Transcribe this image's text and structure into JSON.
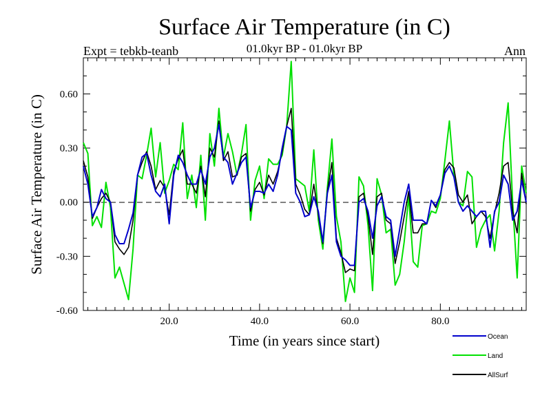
{
  "chart_data": {
    "type": "line",
    "title": "Surface Air Temperature (in C)",
    "subtitle": "01.0kyr BP - 01.0kyr BP",
    "experiment": "Expt = tebkb-teanb",
    "season": "Ann",
    "xlabel": "Time (in years since start)",
    "ylabel": "Surface Air Temperature (in C)",
    "xlim": [
      1,
      99
    ],
    "ylim": [
      -0.6,
      0.8
    ],
    "xticks": [
      20,
      40,
      60,
      80
    ],
    "xtick_labels": [
      "20.0",
      "40.0",
      "60.0",
      "80.0"
    ],
    "yticks": [
      -0.6,
      -0.3,
      0.0,
      0.3,
      0.6
    ],
    "ytick_labels": [
      "-0.60",
      "-0.30",
      "0.00",
      "0.30",
      "0.60"
    ],
    "zero_line": "dashed",
    "x_start": 1,
    "x_step": 1,
    "series": [
      {
        "name": "Ocean",
        "color": "#0000cc",
        "values": [
          0.2,
          0.1,
          -0.08,
          -0.03,
          0.07,
          0.02,
          0.0,
          -0.18,
          -0.23,
          -0.23,
          -0.15,
          -0.06,
          0.15,
          0.25,
          0.27,
          0.15,
          0.06,
          0.03,
          0.1,
          -0.12,
          0.15,
          0.26,
          0.22,
          0.15,
          0.1,
          0.1,
          0.18,
          0.1,
          0.25,
          0.3,
          0.43,
          0.25,
          0.22,
          0.1,
          0.16,
          0.22,
          0.25,
          -0.03,
          0.06,
          0.06,
          0.05,
          0.1,
          0.06,
          0.15,
          0.3,
          0.42,
          0.4,
          0.05,
          0.0,
          -0.08,
          -0.07,
          0.03,
          -0.05,
          -0.22,
          0.05,
          0.15,
          -0.22,
          -0.3,
          -0.32,
          -0.35,
          -0.35,
          0.0,
          0.02,
          -0.05,
          -0.2,
          -0.02,
          0.03,
          -0.08,
          -0.1,
          -0.3,
          -0.15,
          0.0,
          0.1,
          -0.1,
          -0.1,
          -0.1,
          -0.12,
          0.01,
          -0.02,
          0.04,
          0.16,
          0.2,
          0.14,
          0.0,
          -0.05,
          -0.02,
          -0.05,
          -0.08,
          -0.05,
          -0.05,
          -0.25,
          -0.05,
          0.0,
          0.15,
          0.1,
          -0.1,
          -0.05,
          0.12,
          -0.0
        ]
      },
      {
        "name": "Land",
        "color": "#00e000",
        "values": [
          0.33,
          0.27,
          -0.13,
          -0.08,
          -0.14,
          0.11,
          -0.03,
          -0.42,
          -0.36,
          -0.45,
          -0.54,
          -0.26,
          0.15,
          0.13,
          0.26,
          0.41,
          0.14,
          0.33,
          0.05,
          0.12,
          0.21,
          0.18,
          0.44,
          0.02,
          0.15,
          -0.03,
          0.26,
          -0.1,
          0.38,
          0.2,
          0.52,
          0.25,
          0.38,
          0.28,
          0.15,
          0.27,
          0.43,
          -0.1,
          0.12,
          0.2,
          0.02,
          0.24,
          0.21,
          0.21,
          0.26,
          0.42,
          0.78,
          0.13,
          0.11,
          0.09,
          -0.05,
          0.29,
          -0.1,
          -0.26,
          0.08,
          0.35,
          -0.08,
          -0.22,
          -0.55,
          -0.42,
          -0.5,
          0.14,
          0.09,
          -0.13,
          -0.49,
          0.13,
          0.04,
          -0.17,
          -0.15,
          -0.46,
          -0.4,
          -0.22,
          0.03,
          -0.33,
          -0.36,
          -0.13,
          -0.12,
          -0.05,
          -0.06,
          0.02,
          0.23,
          0.45,
          0.15,
          0.0,
          -0.02,
          0.17,
          0.14,
          -0.25,
          -0.15,
          -0.1,
          -0.07,
          -0.27,
          -0.05,
          0.33,
          0.55,
          0.0,
          -0.42,
          0.2,
          0.05
        ]
      },
      {
        "name": "AllSurf",
        "color": "#000000",
        "values": [
          0.23,
          0.14,
          -0.09,
          -0.03,
          0.02,
          0.05,
          0.0,
          -0.22,
          -0.26,
          -0.29,
          -0.25,
          -0.1,
          0.15,
          0.22,
          0.28,
          0.2,
          0.07,
          0.12,
          0.08,
          -0.07,
          0.17,
          0.24,
          0.29,
          0.1,
          0.1,
          0.05,
          0.2,
          0.03,
          0.3,
          0.25,
          0.45,
          0.23,
          0.28,
          0.14,
          0.15,
          0.25,
          0.27,
          -0.05,
          0.07,
          0.11,
          0.04,
          0.15,
          0.1,
          0.17,
          0.28,
          0.42,
          0.52,
          0.1,
          0.04,
          -0.04,
          -0.07,
          0.1,
          -0.07,
          -0.23,
          0.06,
          0.22,
          -0.2,
          -0.28,
          -0.39,
          -0.37,
          -0.38,
          0.03,
          0.05,
          -0.08,
          -0.29,
          0.03,
          0.05,
          -0.1,
          -0.12,
          -0.34,
          -0.22,
          -0.08,
          0.06,
          -0.17,
          -0.17,
          -0.12,
          -0.12,
          0.01,
          -0.03,
          0.04,
          0.18,
          0.22,
          0.19,
          0.04,
          0.0,
          0.04,
          -0.12,
          -0.08,
          -0.05,
          -0.08,
          -0.2,
          -0.06,
          0.05,
          0.2,
          0.22,
          -0.05,
          -0.17,
          0.16,
          -0.01
        ]
      }
    ]
  }
}
